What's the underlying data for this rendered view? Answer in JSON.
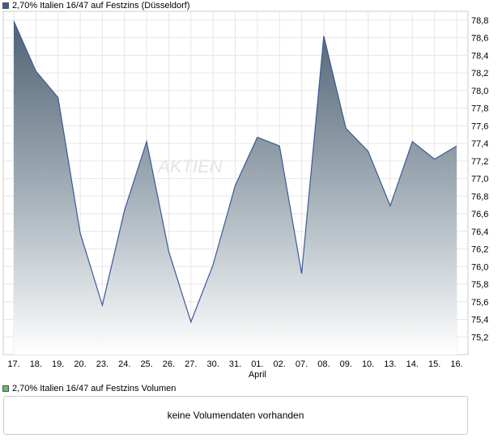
{
  "price_panel": {
    "legend_label": "2,70% Italien 16/47 auf Festzins (Düsseldorf)",
    "legend_color": "#3b5a9a",
    "watermark": "AKTIEN"
  },
  "volume_panel": {
    "legend_label": "2,70% Italien 16/47 auf Festzins Volumen",
    "legend_color": "#66bb66",
    "empty_message": "keine Volumendaten vorhanden"
  },
  "chart_data": {
    "type": "area",
    "categories": [
      "17.",
      "18.",
      "19.",
      "20.",
      "23.",
      "24.",
      "25.",
      "26.",
      "27.",
      "30.",
      "31.",
      "01.",
      "02.",
      "07.",
      "08.",
      "09.",
      "10.",
      "13.",
      "14.",
      "15.",
      "16."
    ],
    "month_label": {
      "text": "April",
      "at_category": "01."
    },
    "values": [
      78.79,
      78.22,
      77.92,
      76.38,
      75.56,
      76.64,
      77.42,
      76.17,
      75.37,
      76.02,
      76.92,
      77.47,
      77.37,
      75.92,
      78.62,
      77.57,
      77.31,
      76.69,
      77.42,
      77.22,
      77.37
    ],
    "ylim": [
      75.0,
      78.9
    ],
    "yticks": [
      "75,2",
      "75,4",
      "75,6",
      "75,8",
      "76,0",
      "76,2",
      "76,4",
      "76,6",
      "76,8",
      "77,0",
      "77,2",
      "77,4",
      "77,6",
      "77,8",
      "78,0",
      "78,2",
      "78,4",
      "78,6",
      "78,8"
    ],
    "ytick_values": [
      75.2,
      75.4,
      75.6,
      75.8,
      76.0,
      76.2,
      76.4,
      76.6,
      76.8,
      77.0,
      77.2,
      77.4,
      77.6,
      77.8,
      78.0,
      78.2,
      78.4,
      78.6,
      78.8
    ],
    "grid": true,
    "line_color": "#3b5a9a",
    "fill_top_color": "#4f6273",
    "fill_bottom_color": "#ffffff"
  }
}
